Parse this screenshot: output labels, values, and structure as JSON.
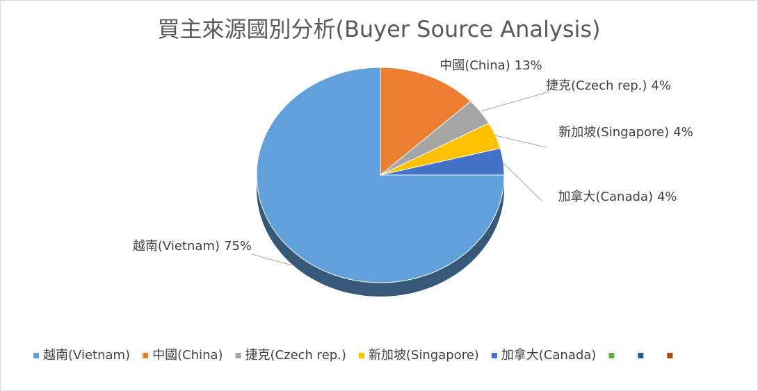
{
  "chart_data": {
    "type": "pie",
    "title": "買主來源國別分析(Buyer Source Analysis)",
    "categories": [
      "越南(Vietnam)",
      "中國(China)",
      "捷克(Czech rep.)",
      "新加坡(Singapore)",
      "加拿大(Canada)",
      null,
      null,
      null
    ],
    "values": [
      75,
      13,
      4,
      4,
      4,
      0,
      0,
      0
    ],
    "value_labels": [
      "75%",
      "13%",
      "4%",
      "4%",
      "4%",
      null,
      null,
      null
    ],
    "colors": [
      "#62a0dc",
      "#ed7d31",
      "#a5a5a5",
      "#ffc000",
      "#4472c4",
      "#70ad47",
      "#255e91",
      "#9e480e"
    ],
    "legend": "bottom"
  }
}
